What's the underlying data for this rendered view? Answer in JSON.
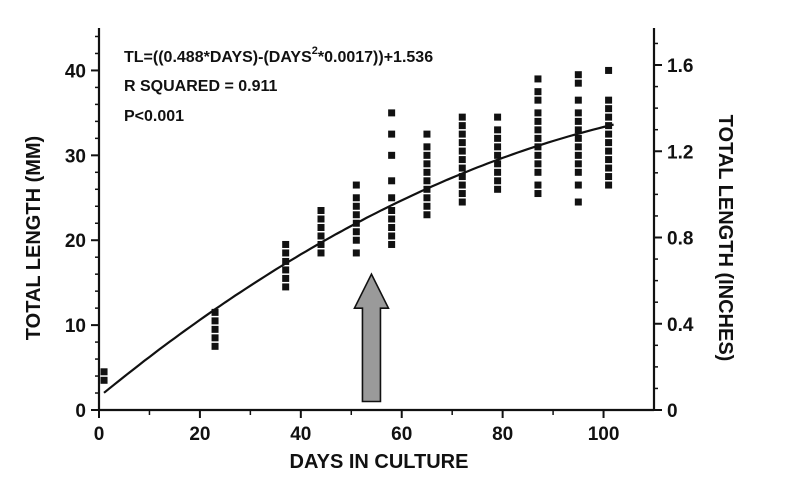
{
  "chart_data": {
    "type": "scatter",
    "x": {
      "label": "DAYS IN CULTURE",
      "range": [
        0,
        110
      ],
      "ticks": [
        0,
        20,
        40,
        60,
        80,
        100
      ]
    },
    "y_left": {
      "label": "TOTAL LENGTH (MM)",
      "range": [
        0,
        45
      ],
      "ticks": [
        0,
        10,
        20,
        30,
        40
      ]
    },
    "y_right": {
      "label": "TOTAL LENGTH (INCHES)",
      "ticks": [
        "0",
        "0.4",
        "0.8",
        "1.2",
        "1.6"
      ],
      "tick_values_mm": [
        0,
        10.16,
        20.32,
        30.48,
        40.64
      ]
    },
    "annotations": {
      "line1_prefix": "TL=((0.488*DAYS)-(DAYS",
      "line1_exp": "2",
      "line1_suffix": "*0.0017))+1.536",
      "line2": "R SQUARED = 0.911",
      "line3": "P<0.001"
    },
    "fit": {
      "a": 0.488,
      "b": 0.0017,
      "c": 1.536,
      "x_range": [
        1,
        102
      ]
    },
    "arrow": {
      "x": 54,
      "y_bottom": 1,
      "y_top": 16
    },
    "grid": false,
    "series": [
      {
        "x": 1,
        "y": [
          3.5,
          4.5
        ]
      },
      {
        "x": 23,
        "y": [
          7.5,
          8.5,
          9.5,
          10.5,
          11.5
        ]
      },
      {
        "x": 37,
        "y": [
          14.5,
          15.5,
          16.5,
          17.5,
          18.5,
          19.5
        ]
      },
      {
        "x": 44,
        "y": [
          18.5,
          19.5,
          20.5,
          21.5,
          22.5,
          23.5
        ]
      },
      {
        "x": 51,
        "y": [
          18.5,
          20,
          21,
          22,
          23,
          24,
          25,
          26.5
        ]
      },
      {
        "x": 58,
        "y": [
          19.5,
          20.5,
          21.5,
          22.5,
          23.5,
          25,
          27,
          30,
          32.5,
          35
        ]
      },
      {
        "x": 65,
        "y": [
          23,
          24,
          25,
          26,
          27,
          28,
          29,
          30,
          31,
          32.5
        ]
      },
      {
        "x": 72,
        "y": [
          24.5,
          25.5,
          26.5,
          27.5,
          28.5,
          29.5,
          30.5,
          31.5,
          32.5,
          33.5,
          34.5
        ]
      },
      {
        "x": 79,
        "y": [
          26,
          27,
          28,
          29,
          30,
          31,
          32,
          33,
          34.5
        ]
      },
      {
        "x": 87,
        "y": [
          25.5,
          26.5,
          28,
          29,
          30,
          31,
          32,
          33,
          34,
          35,
          36.5,
          37.5,
          39
        ]
      },
      {
        "x": 95,
        "y": [
          24.5,
          26.5,
          28,
          29,
          30,
          31,
          32,
          33,
          34,
          35,
          36.5,
          38.5,
          39.5
        ]
      },
      {
        "x": 101,
        "y": [
          26.5,
          27.5,
          28.5,
          29.5,
          30.5,
          31.5,
          32.5,
          33.5,
          34.5,
          35.5,
          36.5,
          40
        ]
      }
    ]
  }
}
